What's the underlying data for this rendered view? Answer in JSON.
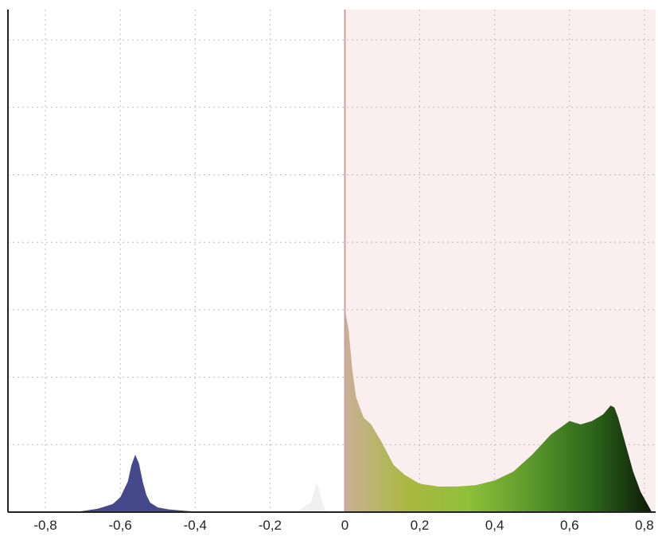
{
  "chart_data": {
    "type": "area",
    "title": "",
    "xlabel": "",
    "ylabel": "",
    "xlim": [
      -0.9,
      0.83
    ],
    "ylim": [
      0,
      7.45
    ],
    "grid": true,
    "x_ticks": [
      -0.8,
      -0.6,
      -0.4,
      -0.2,
      0,
      0.2,
      0.4,
      0.6,
      0.8
    ],
    "x_tick_labels": [
      "-0,8",
      "-0,6",
      "-0,4",
      "-0,2",
      "0",
      "0,2",
      "0,4",
      "0,6",
      "0,8"
    ],
    "y_gridlines": [
      1,
      2,
      3,
      4,
      5,
      6,
      7
    ],
    "colors": {
      "negative_fill": "#3b3f86",
      "positive_background": "#fbeeee",
      "zero_line": "#c9a0a0",
      "gradient": [
        "#c8b092",
        "#a9b840",
        "#8fc03a",
        "#5e9a2c",
        "#2f6a1c",
        "#0f1f08"
      ]
    },
    "series": [
      {
        "x": [
          -0.72,
          -0.66,
          -0.62,
          -0.6,
          -0.58,
          -0.57,
          -0.56,
          -0.55,
          -0.54,
          -0.53,
          -0.52,
          -0.5,
          -0.47,
          -0.43,
          -0.38
        ],
        "y": [
          0.0,
          0.05,
          0.12,
          0.22,
          0.45,
          0.7,
          0.85,
          0.72,
          0.45,
          0.25,
          0.14,
          0.07,
          0.04,
          0.02,
          0.0
        ]
      },
      {
        "x": [
          -0.13,
          -0.09,
          -0.075,
          -0.06,
          -0.05
        ],
        "y": [
          0.0,
          0.15,
          0.45,
          0.15,
          0.0
        ]
      },
      {
        "x": [
          0.0,
          0.01,
          0.02,
          0.03,
          0.05,
          0.07,
          0.1,
          0.13,
          0.16,
          0.2,
          0.25,
          0.3,
          0.35,
          0.4,
          0.45,
          0.5,
          0.55,
          0.6,
          0.63,
          0.66,
          0.69,
          0.71,
          0.72,
          0.73,
          0.75,
          0.77,
          0.79,
          0.81,
          0.82
        ],
        "y": [
          3.0,
          2.7,
          2.1,
          1.7,
          1.4,
          1.3,
          1.02,
          0.7,
          0.55,
          0.42,
          0.38,
          0.38,
          0.4,
          0.47,
          0.6,
          0.85,
          1.15,
          1.35,
          1.3,
          1.35,
          1.45,
          1.58,
          1.55,
          1.4,
          1.0,
          0.6,
          0.3,
          0.1,
          0.0
        ]
      }
    ]
  }
}
